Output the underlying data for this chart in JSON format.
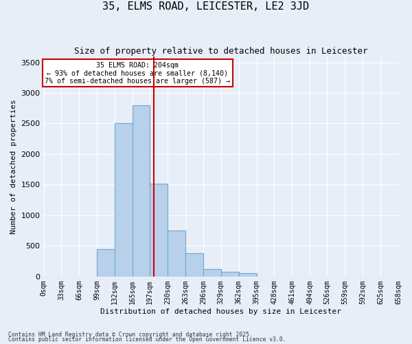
{
  "title": "35, ELMS ROAD, LEICESTER, LE2 3JD",
  "subtitle": "Size of property relative to detached houses in Leicester",
  "xlabel": "Distribution of detached houses by size in Leicester",
  "ylabel": "Number of detached properties",
  "footnote1": "Contains HM Land Registry data © Crown copyright and database right 2025.",
  "footnote2": "Contains public sector information licensed under the Open Government Licence v3.0.",
  "annotation_title": "35 ELMS ROAD: 204sqm",
  "annotation_line1": "← 93% of detached houses are smaller (8,140)",
  "annotation_line2": "7% of semi-detached houses are larger (587) →",
  "property_size": 204,
  "bin_edges": [
    0,
    33,
    66,
    99,
    132,
    165,
    197,
    230,
    263,
    296,
    329,
    362,
    395,
    428,
    461,
    494,
    526,
    559,
    592,
    625,
    658
  ],
  "bar_heights": [
    0,
    0,
    0,
    450,
    2500,
    2800,
    1520,
    750,
    380,
    120,
    80,
    50,
    0,
    0,
    0,
    0,
    0,
    0,
    0,
    0
  ],
  "bar_color": "#b8d0ea",
  "bar_edge_color": "#6aaad4",
  "line_color": "#cc0000",
  "ylim": [
    0,
    3600
  ],
  "yticks": [
    0,
    500,
    1000,
    1500,
    2000,
    2500,
    3000,
    3500
  ],
  "bg_color": "#e8eef8",
  "grid_color": "#ffffff",
  "annotation_box_facecolor": "#ffffff",
  "annotation_box_edgecolor": "#cc0000",
  "title_fontsize": 11,
  "subtitle_fontsize": 9,
  "ylabel_fontsize": 8,
  "xlabel_fontsize": 8,
  "ytick_fontsize": 8,
  "xtick_fontsize": 7
}
